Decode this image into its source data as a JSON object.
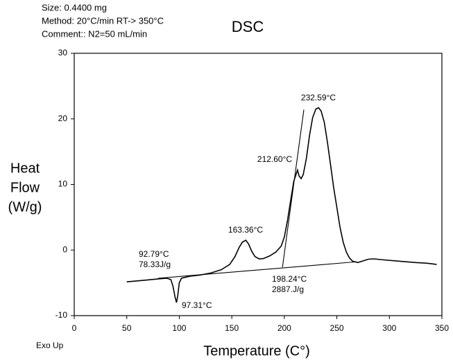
{
  "chart_data": {
    "type": "line",
    "title": "DSC",
    "header": [
      "Size: 0.4400 mg",
      "Method: 20°C/min RT-> 350°C",
      "Comment:: N2=50 mL/min"
    ],
    "ylabel_lines": [
      "Heat",
      "Flow",
      "(W/g)"
    ],
    "xlabel": "Temperature (C°)",
    "exo_label": "Exo Up",
    "xlim": [
      0,
      350
    ],
    "xticks": [
      0,
      50,
      100,
      150,
      200,
      250,
      300,
      350
    ],
    "ylim": [
      -10,
      30
    ],
    "yticks": [
      -10,
      0,
      10,
      20,
      30
    ],
    "color": "#000000",
    "x": [
      50,
      60,
      70,
      80,
      88,
      92,
      94,
      96,
      97.31,
      98.5,
      100,
      102,
      110,
      120,
      130,
      140,
      148,
      153,
      157,
      160,
      163.36,
      166,
      169,
      172,
      176,
      180,
      186,
      192,
      197,
      200,
      203,
      206,
      209,
      212.6,
      214,
      216,
      218,
      221,
      224,
      227,
      230,
      232.59,
      235,
      238,
      241,
      244,
      247,
      250,
      253,
      256,
      259,
      262,
      265,
      270,
      280,
      285,
      295,
      310,
      325,
      335,
      340,
      345
    ],
    "values": [
      -4.85,
      -4.7,
      -4.55,
      -4.4,
      -4.3,
      -4.5,
      -5.5,
      -7.2,
      -8.0,
      -7.0,
      -5.0,
      -4.3,
      -4.0,
      -3.8,
      -3.5,
      -3.0,
      -2.2,
      -1.0,
      0.4,
      1.2,
      1.5,
      0.9,
      -0.2,
      -1.0,
      -1.35,
      -1.3,
      -0.9,
      -0.3,
      0.6,
      2.0,
      4.5,
      7.5,
      10.5,
      12.2,
      11.3,
      10.9,
      11.5,
      14,
      17.5,
      20.2,
      21.5,
      21.7,
      21.2,
      19.5,
      16.5,
      13,
      9.5,
      6.5,
      3.5,
      1.2,
      -0.3,
      -1.2,
      -1.7,
      -1.9,
      -1.4,
      -1.35,
      -1.5,
      -1.7,
      -1.9,
      -2.0,
      -2.1,
      -2.2
    ],
    "construction_lines": [
      {
        "x": [
          80,
          268
        ],
        "values": [
          -4.3,
          -1.8
        ]
      },
      {
        "x": [
          198.24,
          218.6
        ],
        "values": [
          -2.6,
          21.4
        ]
      }
    ],
    "annotations": [
      "92.79°C",
      "78.33J/g",
      "97.31°C",
      "163.36°C",
      "212.60°C",
      "232.59°C",
      "198.24°C",
      "2887.J/g"
    ]
  }
}
